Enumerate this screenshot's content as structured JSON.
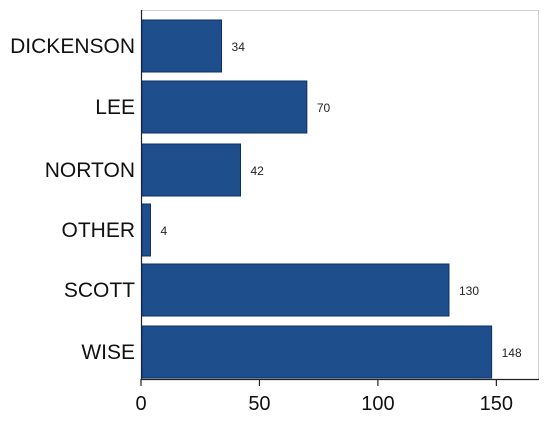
{
  "chart_data": {
    "type": "bar",
    "orientation": "horizontal",
    "categories": [
      "DICKENSON",
      "LEE",
      "NORTON",
      "OTHER",
      "SCOTT",
      "WISE"
    ],
    "values": [
      34,
      70,
      42,
      4,
      130,
      148
    ],
    "data_labels": [
      "34",
      "70",
      "42",
      "4",
      "130",
      "148"
    ],
    "x_ticks": [
      0,
      50,
      100,
      150
    ],
    "x_tick_labels": [
      "0",
      "50",
      "100",
      "150"
    ],
    "xlim": [
      0,
      168
    ],
    "bar_color": "#1f4e8c",
    "bar_edge_color": "#0d2f63",
    "grid": false
  }
}
